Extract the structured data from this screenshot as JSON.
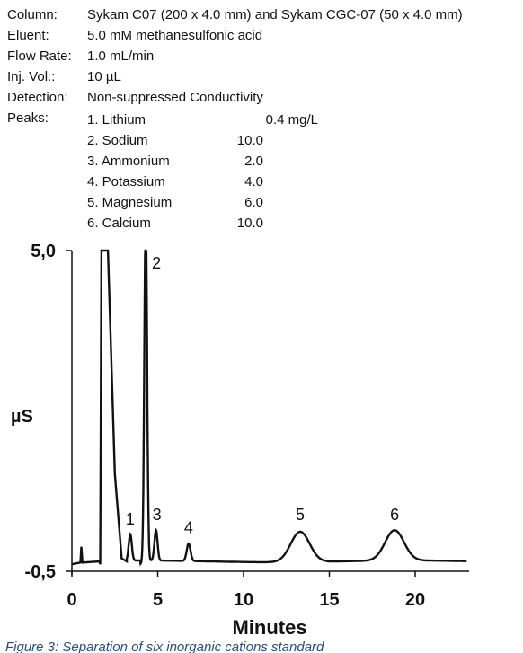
{
  "conditions": [
    {
      "label": "Column:",
      "value": "Sykam C07 (200 x 4.0 mm) and Sykam CGC-07 (50 x 4.0 mm)"
    },
    {
      "label": "Eluent:",
      "value": "5.0 mM methanesulfonic acid"
    },
    {
      "label": "Flow Rate:",
      "value": "1.0 mL/min"
    },
    {
      "label": "Inj. Vol.:",
      "value": "10 µL"
    },
    {
      "label": "Detection:",
      "value": "Non-suppressed Conductivity"
    },
    {
      "label": "Peaks:",
      "value": ""
    }
  ],
  "peaks": [
    {
      "name": "1. Lithium",
      "conc": "0.4 mg/L"
    },
    {
      "name": "2. Sodium",
      "conc": "10.0"
    },
    {
      "name": "3. Ammonium",
      "conc": "2.0"
    },
    {
      "name": "4. Potassium",
      "conc": "4.0"
    },
    {
      "name": "5. Magnesium",
      "conc": "6.0"
    },
    {
      "name": "6. Calcium",
      "conc": "10.0"
    }
  ],
  "caption": "Figure 3: Separation of six inorganic cations standard",
  "chart_data": {
    "type": "line",
    "xlabel": "Minutes",
    "ylabel": "µS",
    "xlim": [
      0,
      23
    ],
    "ylim": [
      -0.5,
      5.0
    ],
    "xticks": [
      "0",
      "5",
      "10",
      "15",
      "20"
    ],
    "yticks": [
      "5,0",
      "-0,5"
    ],
    "line_color": "#111111",
    "peaks": [
      {
        "label": "1",
        "time": 3.4,
        "height": 0.45
      },
      {
        "label": "2",
        "time": 4.3,
        "height": 6.0
      },
      {
        "label": "3",
        "time": 4.9,
        "height": 0.52
      },
      {
        "label": "4",
        "time": 6.8,
        "height": 0.3
      },
      {
        "label": "5",
        "time": 13.3,
        "height": 0.52
      },
      {
        "label": "6",
        "time": 18.8,
        "height": 0.52
      }
    ],
    "baseline": -0.33
  }
}
